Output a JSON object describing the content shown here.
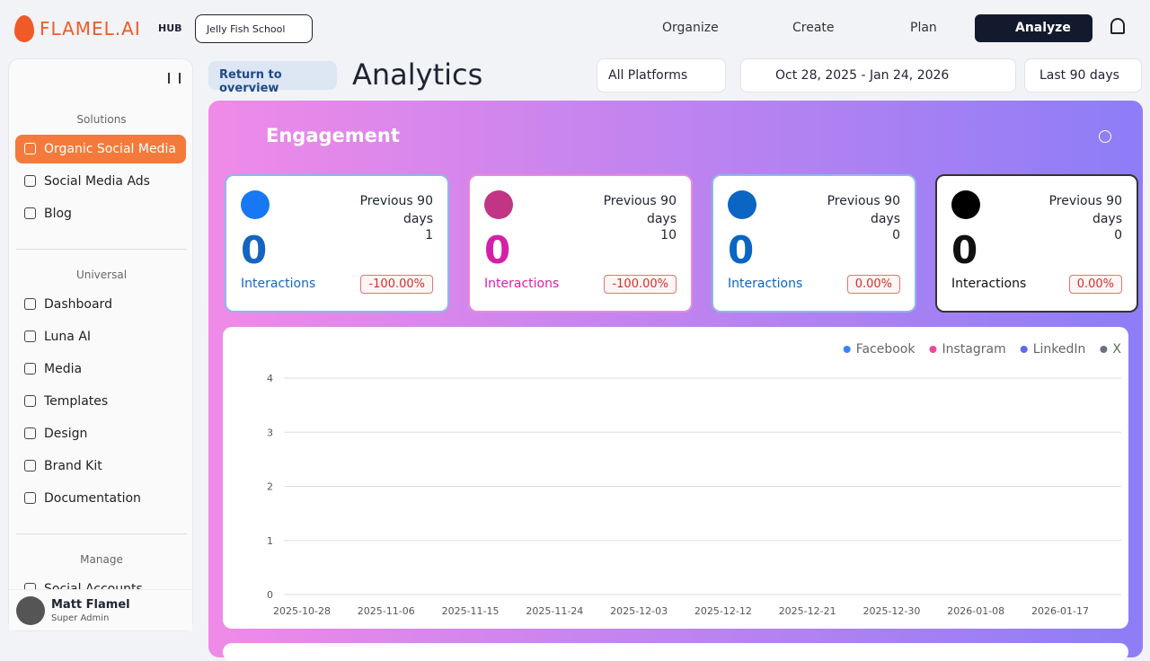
{
  "header": {
    "logo": "FLAMEL.AI",
    "hub": "HUB",
    "workspace": "Jelly Fish School",
    "nav": [
      "Organize",
      "Create",
      "Plan",
      "Analyze"
    ]
  },
  "sidebar": {
    "sections": [
      {
        "title": "Solutions",
        "items": [
          "Organic Social Media",
          "Social Media Ads",
          "Blog"
        ]
      },
      {
        "title": "Universal",
        "items": [
          "Dashboard",
          "Luna AI",
          "Media",
          "Templates",
          "Design",
          "Brand Kit",
          "Documentation"
        ]
      },
      {
        "title": "Manage",
        "items": [
          "Social Accounts"
        ]
      }
    ],
    "user": {
      "name": "Matt Flamel",
      "role": "Super Admin"
    }
  },
  "toolbar": {
    "back": "Return to overview",
    "title": "Analytics",
    "platform": "All Platforms",
    "date_range": "Oct 28, 2025 - Jan 24, 2026",
    "period": "Last 90 days"
  },
  "engagement": {
    "title": "Engagement",
    "cards": [
      {
        "previous_label": "Previous 90 days",
        "previous": 1,
        "count": 0,
        "label": "Interactions",
        "change": "-100.00%"
      },
      {
        "previous_label": "Previous 90 days",
        "previous": 10,
        "count": 0,
        "label": "Interactions",
        "change": "-100.00%"
      },
      {
        "previous_label": "Previous 90 days",
        "previous": 0,
        "count": 0,
        "label": "Interactions",
        "change": "0.00%"
      },
      {
        "previous_label": "Previous 90 days",
        "previous": 0,
        "count": 0,
        "label": "Interactions",
        "change": "0.00%"
      }
    ]
  },
  "chart_data": {
    "type": "line",
    "series": [
      {
        "name": "Facebook",
        "color": "#3b82f6"
      },
      {
        "name": "Instagram",
        "color": "#ec4899"
      },
      {
        "name": "LinkedIn",
        "color": "#6366f1"
      },
      {
        "name": "X",
        "color": "#6b7280"
      }
    ],
    "x": [
      "2025-10-28",
      "2025-11-06",
      "2025-11-15",
      "2025-11-24",
      "2025-12-03",
      "2025-12-12",
      "2025-12-21",
      "2025-12-30",
      "2026-01-08",
      "2026-01-17"
    ],
    "ylim": [
      0,
      4
    ],
    "yticks": [
      0,
      1,
      2,
      3,
      4
    ],
    "grid": true
  }
}
